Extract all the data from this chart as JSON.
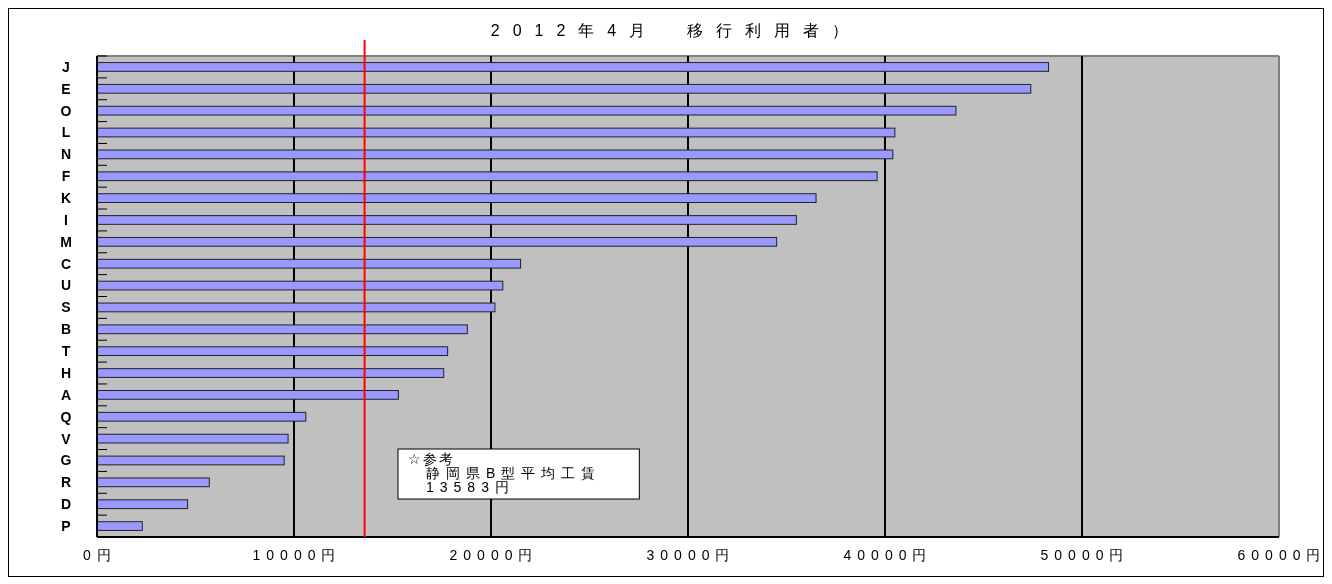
{
  "chart_data": {
    "type": "bar",
    "orientation": "horizontal",
    "title": "2012年4月　移行利用者）",
    "categories": [
      "J",
      "E",
      "O",
      "L",
      "N",
      "F",
      "K",
      "I",
      "M",
      "C",
      "U",
      "S",
      "B",
      "T",
      "H",
      "A",
      "Q",
      "V",
      "G",
      "R",
      "D",
      "P"
    ],
    "values": [
      48300,
      47400,
      43600,
      40500,
      40400,
      39600,
      36500,
      35500,
      34500,
      21500,
      20600,
      20200,
      18800,
      17800,
      17600,
      15300,
      10600,
      9700,
      9500,
      5700,
      4600,
      2300
    ],
    "color": "#9999ff",
    "xlim": [
      0,
      60000
    ],
    "xticks": [
      {
        "value": 0,
        "label": "0円"
      },
      {
        "value": 10000,
        "label": "10000円"
      },
      {
        "value": 20000,
        "label": "20000円"
      },
      {
        "value": 30000,
        "label": "30000円"
      },
      {
        "value": 40000,
        "label": "40000円"
      },
      {
        "value": 50000,
        "label": "50000円"
      },
      {
        "value": 60000,
        "label": "60000円"
      }
    ],
    "grid": "x",
    "ref_lines": [
      {
        "axis": "x",
        "value": 13583,
        "color": "#ff0000"
      }
    ],
    "annotations": [
      "☆参考",
      "静岡県B型平均工賃",
      "13583円"
    ]
  }
}
